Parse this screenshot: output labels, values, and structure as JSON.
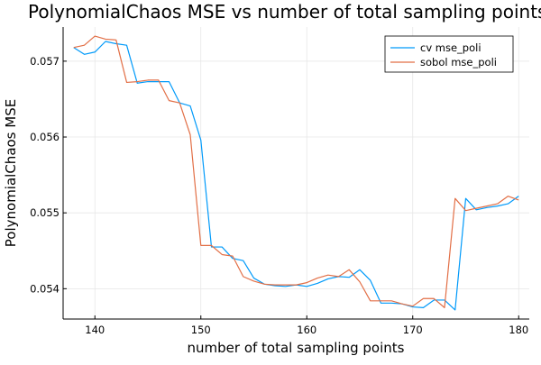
{
  "chart_data": {
    "type": "line",
    "title": "PolynomialChaos MSE vs number of total sampling points",
    "xlabel": "number of total sampling points",
    "ylabel": "PolynomialChaos MSE",
    "xlim": [
      137,
      181
    ],
    "ylim": [
      0.0536,
      0.05745
    ],
    "xticks": [
      140,
      150,
      160,
      170,
      180
    ],
    "xtick_labels": [
      "140",
      "150",
      "160",
      "170",
      "180"
    ],
    "yticks": [
      0.054,
      0.055,
      0.056,
      0.057
    ],
    "ytick_labels": [
      "0.054",
      "0.055",
      "0.056",
      "0.057"
    ],
    "grid": true,
    "legend_position": "top-right",
    "series": [
      {
        "name": "cv mse_poli",
        "color": "#009AFA",
        "x": [
          138,
          139,
          140,
          141,
          142,
          143,
          144,
          145,
          146,
          147,
          148,
          149,
          150,
          151,
          152,
          153,
          154,
          155,
          156,
          157,
          158,
          159,
          160,
          161,
          162,
          163,
          164,
          165,
          166,
          167,
          168,
          169,
          170,
          171,
          172,
          173,
          174,
          175,
          176,
          177,
          178,
          179,
          180
        ],
        "y": [
          0.05718,
          0.05709,
          0.05712,
          0.05726,
          0.05723,
          0.05721,
          0.05671,
          0.05673,
          0.05673,
          0.05673,
          0.05645,
          0.05641,
          0.05596,
          0.05455,
          0.05455,
          0.0544,
          0.05437,
          0.05414,
          0.05406,
          0.05404,
          0.05403,
          0.05405,
          0.05403,
          0.05407,
          0.05413,
          0.05416,
          0.05415,
          0.05425,
          0.05411,
          0.05381,
          0.05381,
          0.0538,
          0.05376,
          0.05375,
          0.05385,
          0.05385,
          0.05372,
          0.05519,
          0.05504,
          0.05507,
          0.05509,
          0.05512,
          0.05522
        ]
      },
      {
        "name": "sobol mse_poli",
        "color": "#E26F46",
        "x": [
          138,
          139,
          140,
          141,
          142,
          143,
          144,
          145,
          146,
          147,
          148,
          149,
          150,
          151,
          152,
          153,
          154,
          155,
          156,
          157,
          158,
          159,
          160,
          161,
          162,
          163,
          164,
          165,
          166,
          167,
          168,
          169,
          170,
          171,
          172,
          173,
          174,
          175,
          176,
          177,
          178,
          179,
          180
        ],
        "y": [
          0.05718,
          0.05721,
          0.05733,
          0.05729,
          0.05728,
          0.05672,
          0.05673,
          0.05675,
          0.05675,
          0.05648,
          0.05645,
          0.05603,
          0.05457,
          0.05457,
          0.05445,
          0.05443,
          0.05416,
          0.0541,
          0.05406,
          0.05405,
          0.05405,
          0.05405,
          0.05408,
          0.05414,
          0.05418,
          0.05416,
          0.05425,
          0.05409,
          0.05384,
          0.05384,
          0.05384,
          0.0538,
          0.05377,
          0.05387,
          0.05387,
          0.05375,
          0.05519,
          0.05503,
          0.05506,
          0.05509,
          0.05512,
          0.05522,
          0.05517
        ]
      }
    ]
  }
}
